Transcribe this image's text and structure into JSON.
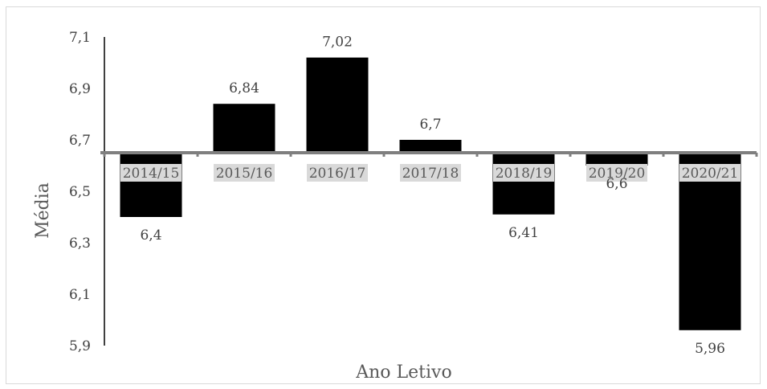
{
  "chart_data": {
    "type": "bar",
    "title": "",
    "xlabel": "Ano Letivo",
    "ylabel": "Média",
    "categories": [
      "2014/15",
      "2015/16",
      "2016/17",
      "2017/18",
      "2018/19",
      "2019/20",
      "2020/21"
    ],
    "values": [
      6.4,
      6.84,
      7.02,
      6.7,
      6.41,
      6.6,
      5.96
    ],
    "value_labels": [
      "6,4",
      "6,84",
      "7,02",
      "6,7",
      "6,41",
      "6,6",
      "5,96"
    ],
    "baseline": 6.65,
    "ylim": [
      5.9,
      7.1
    ],
    "yticks": [
      5.9,
      6.1,
      6.3,
      6.5,
      6.7,
      6.9,
      7.1
    ],
    "ytick_labels": [
      "5,9",
      "6,1",
      "6,3",
      "6,5",
      "6,7",
      "6,9",
      "7,1"
    ],
    "grid": false,
    "legend": "none",
    "colors": {
      "bar": "#000000",
      "category_axis": "#7f7f7f",
      "category_label_background": "#d9d9d9",
      "value_axis": "#000000"
    }
  }
}
